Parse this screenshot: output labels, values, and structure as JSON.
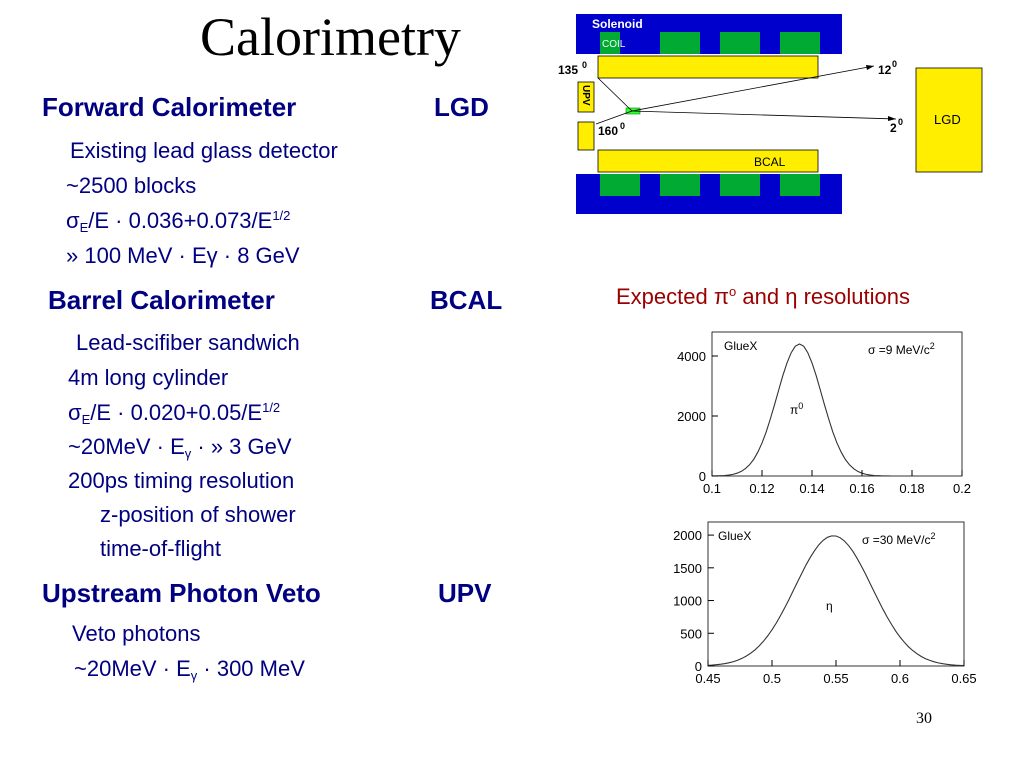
{
  "title": "Calorimetry",
  "forward": {
    "heading": "Forward Calorimeter",
    "abbr": "LGD",
    "line1": "Existing lead glass detector",
    "line2": "~2500 blocks",
    "res_sym": "σ",
    "res_sub": "E",
    "res_rest": "/E · 0.036+0.073/E",
    "res_sup": "1/2",
    "range_pre": "» 100 MeV ·  E",
    "range_gamma": "γ",
    "range_post": " · 8 GeV"
  },
  "barrel": {
    "heading": "Barrel Calorimeter",
    "abbr": "BCAL",
    "line1": "Lead-scifiber sandwich",
    "line2": "4m long cylinder",
    "res_sym": "σ",
    "res_sub": "E",
    "res_rest": "/E · 0.020+0.05/E",
    "res_sup": "1/2",
    "range_pre": "~20MeV · E",
    "range_sub": "γ",
    "range_post": " · » 3 GeV",
    "timing": "200ps timing resolution",
    "timing_a": "z-position of shower",
    "timing_b": "time-of-flight"
  },
  "upv": {
    "heading": "Upstream Photon Veto",
    "abbr": "UPV",
    "line1": "Veto photons",
    "range_pre": "~20MeV · E",
    "range_sub": "γ",
    "range_post": " · 300 MeV"
  },
  "resolutions": {
    "pre": "Expected ",
    "pi": "π",
    "o": "o",
    "mid": " and ",
    "eta": "η",
    "post": " resolutions"
  },
  "detector": {
    "solenoid": "Solenoid",
    "coil": "COIL",
    "upv": "UPV",
    "bcal": "BCAL",
    "lgd": "LGD",
    "ang135": "135",
    "ang160": "160",
    "ang12": "12",
    "ang2": "2",
    "deg": "0"
  },
  "colors": {
    "blue": "#0000cc",
    "green": "#00aa33",
    "yellow": "#ffee00",
    "text": "#000080",
    "red": "#990000"
  },
  "page_number": "30",
  "chart_data": [
    {
      "type": "line",
      "annotation_left": "GlueX",
      "annotation_right": "σ =9 MeV/c",
      "annotation_right_sup": "2",
      "peak_label": "π",
      "peak_label_sup": "0",
      "x_ticks": [
        "0.1",
        "0.12",
        "0.14",
        "0.16",
        "0.18",
        "0.2"
      ],
      "y_ticks": [
        "0",
        "2000",
        "4000"
      ],
      "xlim": [
        0.1,
        0.2
      ],
      "ylim": [
        0,
        4800
      ],
      "mean": 0.135,
      "sigma": 0.009,
      "peak": 4400
    },
    {
      "type": "line",
      "annotation_left": "GlueX",
      "annotation_right": "σ =30 MeV/c",
      "annotation_right_sup": "2",
      "peak_label": "η",
      "x_ticks": [
        "0.45",
        "0.5",
        "0.55",
        "0.6",
        "0.65"
      ],
      "y_ticks": [
        "0",
        "500",
        "1000",
        "1500",
        "2000"
      ],
      "xlim": [
        0.45,
        0.65
      ],
      "ylim": [
        0,
        2200
      ],
      "mean": 0.548,
      "sigma": 0.03,
      "peak": 1990
    }
  ]
}
